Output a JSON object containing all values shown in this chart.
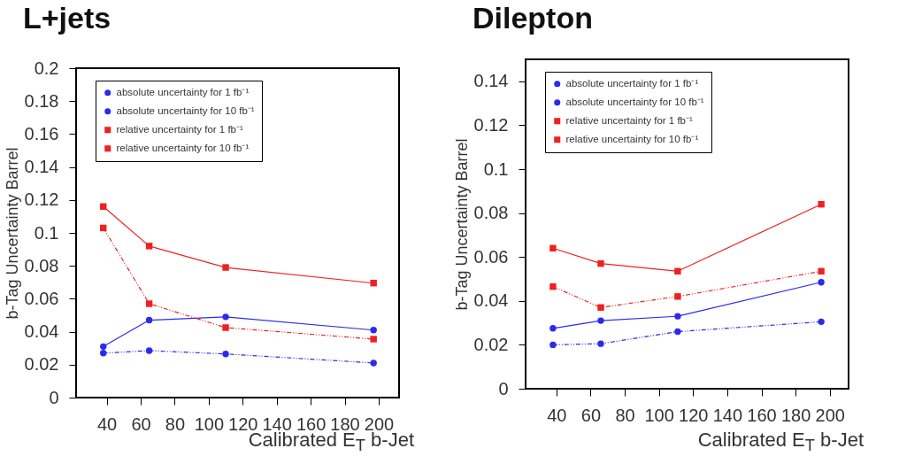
{
  "chart_data": [
    {
      "type": "line",
      "title": "L+jets",
      "xlabel": "Calibrated E$_{T}$ b-Jet",
      "ylabel": "b-Tag Uncertainty Barrel",
      "xlim": [
        22,
        212
      ],
      "xticks": [
        40,
        60,
        80,
        100,
        120,
        140,
        160,
        180,
        200
      ],
      "ylim": [
        0,
        0.2
      ],
      "yticks": [
        0,
        0.02,
        0.04,
        0.06,
        0.08,
        0.1,
        0.12,
        0.14,
        0.16,
        0.18,
        0.2
      ],
      "grid": false,
      "legend": "top",
      "x": [
        38,
        65,
        110,
        197
      ],
      "series": [
        {
          "name": "absolute uncertainty for 1 fb⁻¹",
          "color": "#2a2af0",
          "marker": "circle",
          "line_style": "solid",
          "values": [
            0.031,
            0.047,
            0.049,
            0.041
          ]
        },
        {
          "name": "absolute uncertainty for 10 fb⁻¹",
          "color": "#2a2af0",
          "marker": "circle",
          "line_style": "dashed",
          "values": [
            0.027,
            0.0285,
            0.0265,
            0.021
          ]
        },
        {
          "name": "relative uncertainty for 1 fb⁻¹",
          "color": "#f02020",
          "marker": "square",
          "line_style": "solid",
          "values": [
            0.116,
            0.092,
            0.079,
            0.0695
          ]
        },
        {
          "name": "relative uncertainty for 10 fb⁻¹",
          "color": "#f02020",
          "marker": "square",
          "line_style": "dashed",
          "values": [
            0.103,
            0.057,
            0.0425,
            0.0355
          ]
        }
      ]
    },
    {
      "type": "line",
      "title": "Dilepton",
      "xlabel": "Calibrated E$_{T}$ b-Jet",
      "ylabel": "b-Tag Uncertainty Barrel",
      "xlim": [
        22,
        211
      ],
      "xticks": [
        40,
        60,
        80,
        100,
        120,
        140,
        160,
        180,
        200
      ],
      "ylim": [
        0,
        0.15
      ],
      "yticks": [
        0,
        0.02,
        0.04,
        0.06,
        0.08,
        0.1,
        0.12,
        0.14
      ],
      "grid": false,
      "legend": "top",
      "x": [
        38,
        66,
        111,
        195
      ],
      "series": [
        {
          "name": "absolute uncertainty for 1 fb⁻¹",
          "color": "#2a2af0",
          "marker": "circle",
          "line_style": "solid",
          "values": [
            0.0275,
            0.031,
            0.033,
            0.0485
          ]
        },
        {
          "name": "absolute uncertainty for 10 fb⁻¹",
          "color": "#2a2af0",
          "marker": "circle",
          "line_style": "dashed",
          "values": [
            0.02,
            0.0205,
            0.026,
            0.0305
          ]
        },
        {
          "name": "relative uncertainty for 1 fb⁻¹",
          "color": "#f02020",
          "marker": "square",
          "line_style": "solid",
          "values": [
            0.064,
            0.057,
            0.0535,
            0.084
          ]
        },
        {
          "name": "relative uncertainty for 10 fb⁻¹",
          "color": "#f02020",
          "marker": "square",
          "line_style": "dashed",
          "values": [
            0.0465,
            0.037,
            0.042,
            0.0535
          ]
        }
      ]
    }
  ]
}
